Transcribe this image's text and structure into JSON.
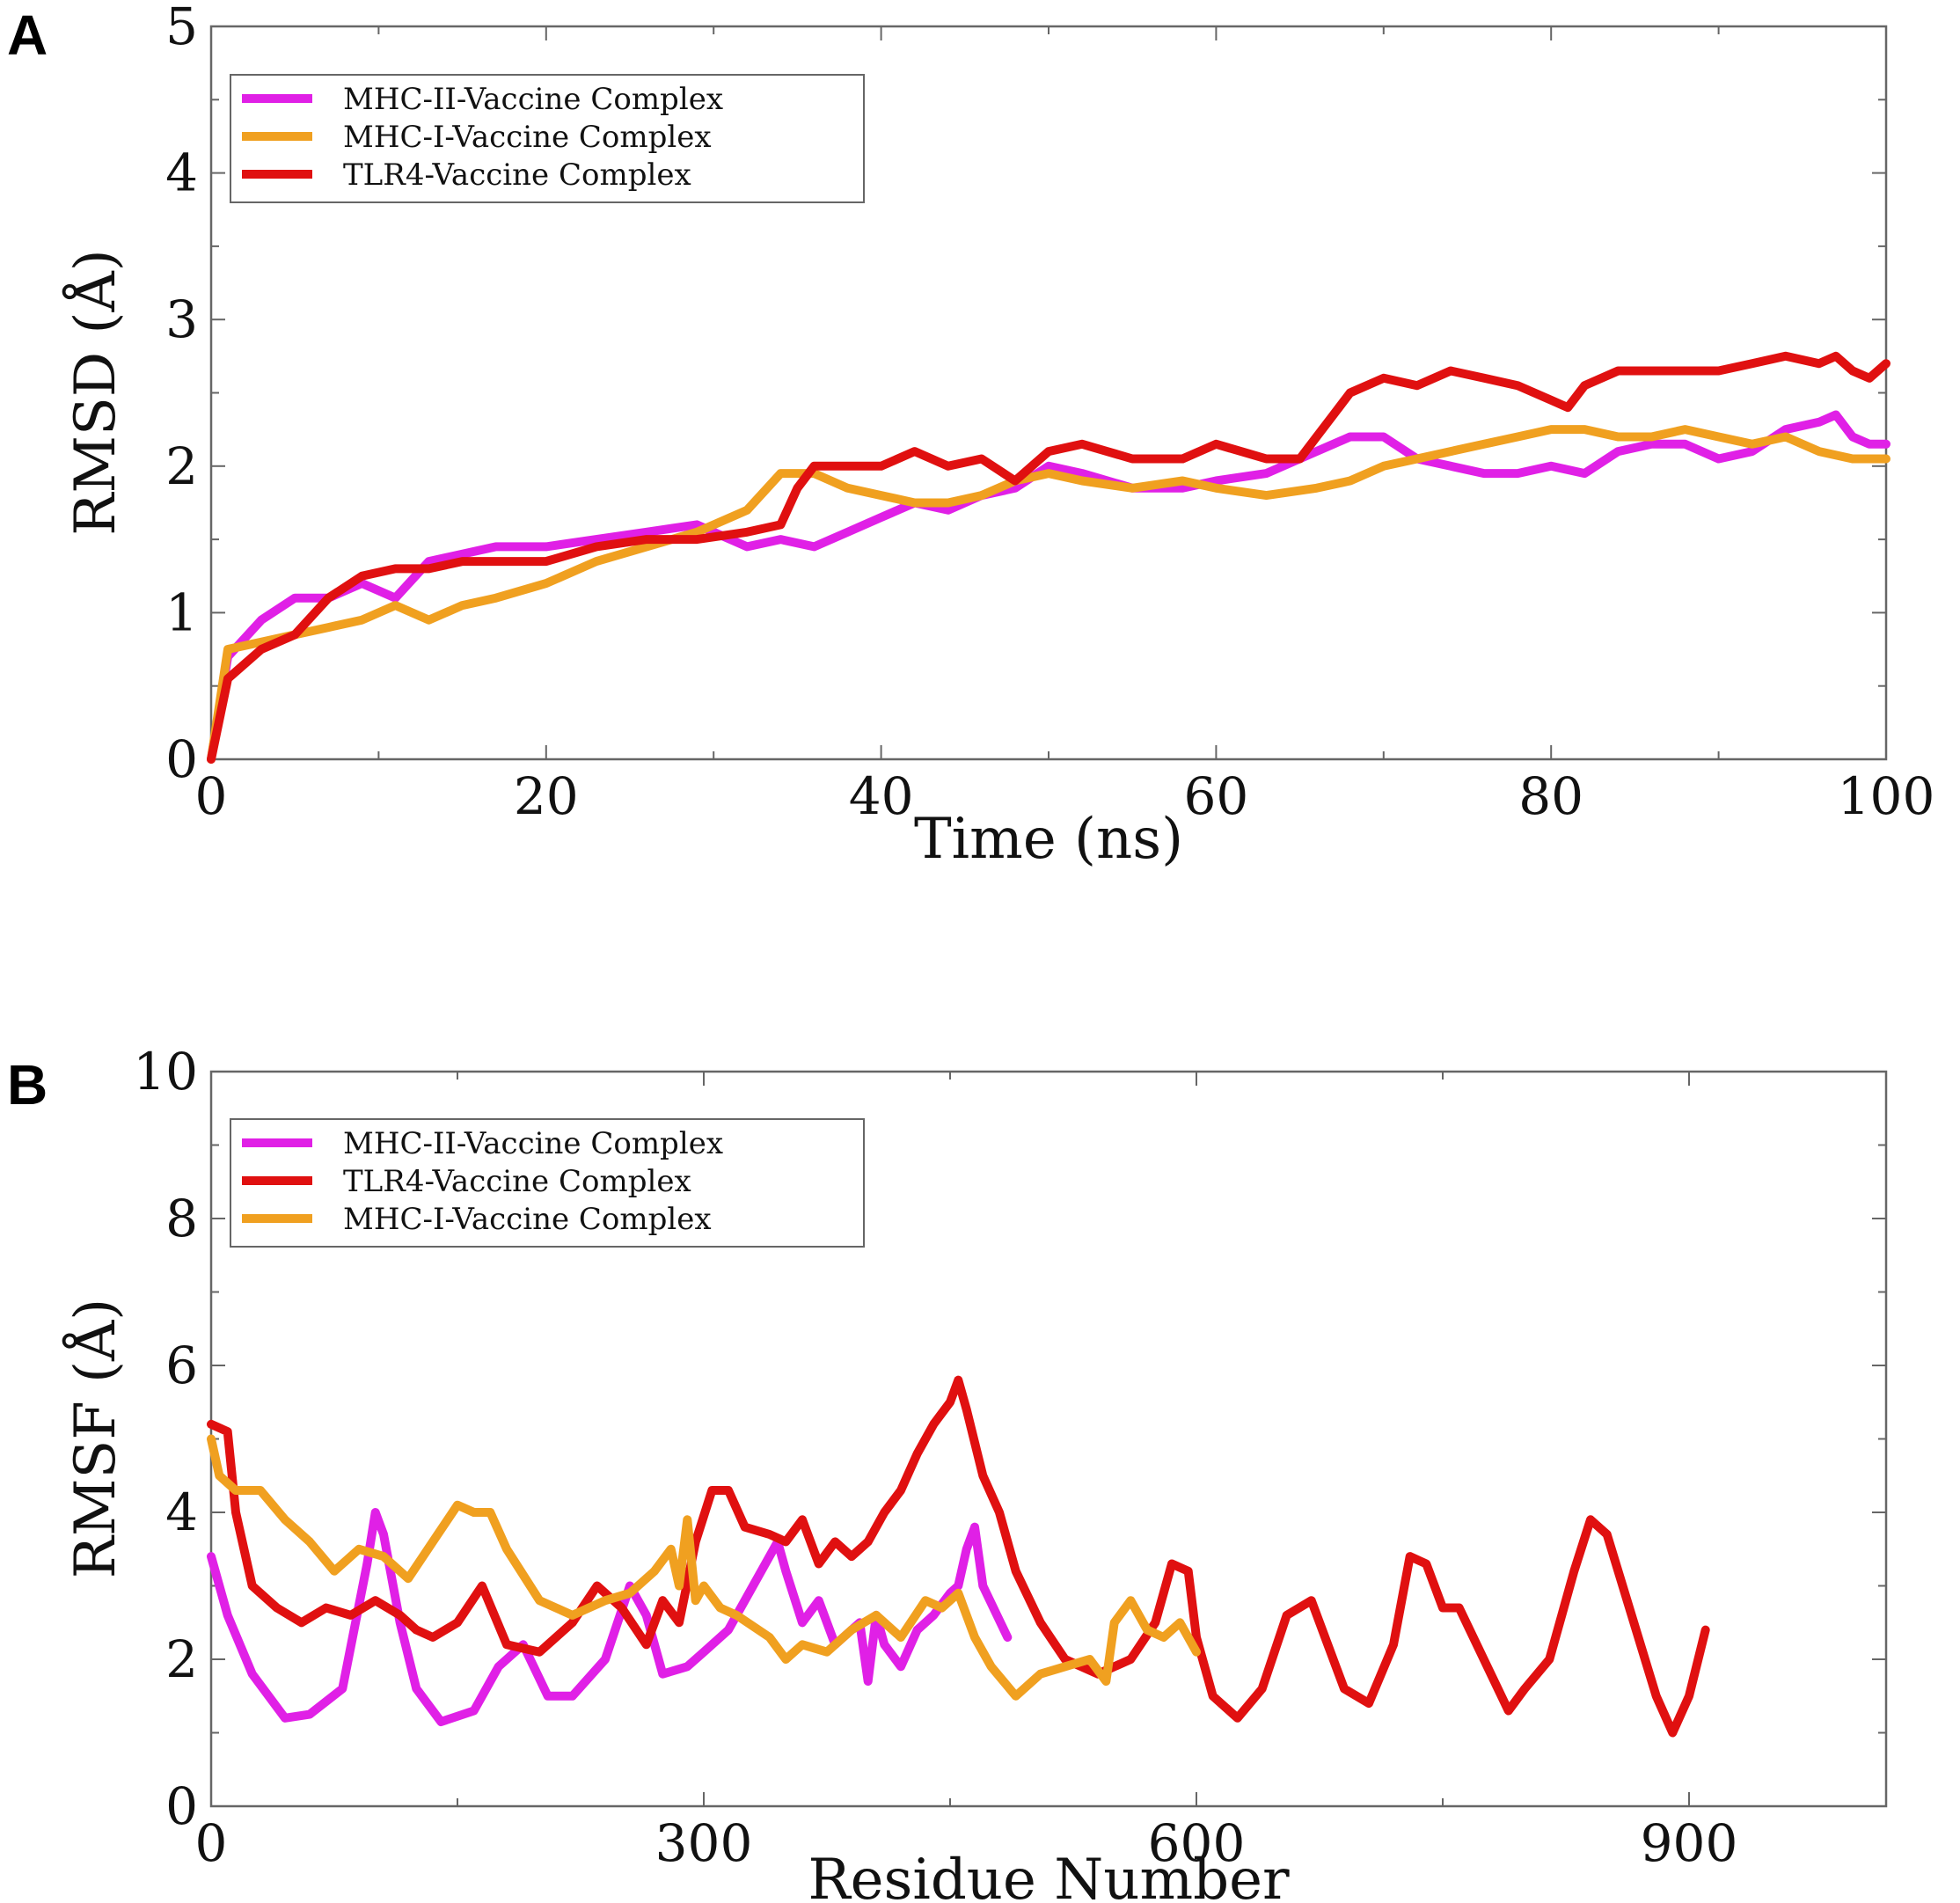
{
  "panels": {
    "A": {
      "label": "A"
    },
    "B": {
      "label": "B"
    }
  },
  "colors": {
    "mhc2": "#e020e6",
    "mhc1": "#f0a020",
    "tlr4": "#e01010"
  },
  "chart_data": [
    {
      "id": "A",
      "type": "line",
      "title": "",
      "xlabel": "Time (ns)",
      "ylabel": "RMSD (Å)",
      "xlim": [
        0,
        100
      ],
      "ylim": [
        0,
        5
      ],
      "xticks": [
        0,
        20,
        40,
        60,
        80,
        100
      ],
      "yticks": [
        0,
        1,
        2,
        3,
        4,
        5
      ],
      "legend_position": "top-left",
      "legend": [
        "MHC-II-Vaccine Complex",
        "MHC-I-Vaccine Complex",
        "TLR4-Vaccine Complex"
      ],
      "series": [
        {
          "name": "MHC-II-Vaccine Complex",
          "color": "#e020e6",
          "x": [
            0,
            1,
            3,
            5,
            7,
            9,
            11,
            13,
            15,
            17,
            20,
            23,
            26,
            29,
            32,
            34,
            36,
            38,
            40,
            42,
            44,
            46,
            48,
            50,
            52,
            55,
            58,
            60,
            63,
            66,
            68,
            70,
            72,
            74,
            76,
            78,
            80,
            82,
            84,
            86,
            88,
            90,
            92,
            94,
            96,
            97,
            98,
            99,
            100
          ],
          "y": [
            0,
            0.7,
            0.95,
            1.1,
            1.1,
            1.2,
            1.1,
            1.35,
            1.4,
            1.45,
            1.45,
            1.5,
            1.55,
            1.6,
            1.45,
            1.5,
            1.45,
            1.55,
            1.65,
            1.75,
            1.7,
            1.8,
            1.85,
            2.0,
            1.95,
            1.85,
            1.85,
            1.9,
            1.95,
            2.1,
            2.2,
            2.2,
            2.05,
            2.0,
            1.95,
            1.95,
            2.0,
            1.95,
            2.1,
            2.15,
            2.15,
            2.05,
            2.1,
            2.25,
            2.3,
            2.35,
            2.2,
            2.15,
            2.15
          ]
        },
        {
          "name": "MHC-I-Vaccine Complex",
          "color": "#f0a020",
          "x": [
            0,
            1,
            3,
            5,
            7,
            9,
            11,
            13,
            15,
            17,
            20,
            23,
            26,
            29,
            32,
            34,
            36,
            38,
            40,
            42,
            44,
            46,
            48,
            50,
            52,
            55,
            58,
            60,
            63,
            66,
            68,
            70,
            72,
            74,
            76,
            78,
            80,
            82,
            84,
            86,
            88,
            90,
            92,
            94,
            96,
            98,
            100
          ],
          "y": [
            0,
            0.75,
            0.8,
            0.85,
            0.9,
            0.95,
            1.05,
            0.95,
            1.05,
            1.1,
            1.2,
            1.35,
            1.45,
            1.55,
            1.7,
            1.95,
            1.95,
            1.85,
            1.8,
            1.75,
            1.75,
            1.8,
            1.9,
            1.95,
            1.9,
            1.85,
            1.9,
            1.85,
            1.8,
            1.85,
            1.9,
            2.0,
            2.05,
            2.1,
            2.15,
            2.2,
            2.25,
            2.25,
            2.2,
            2.2,
            2.25,
            2.2,
            2.15,
            2.2,
            2.1,
            2.05,
            2.05
          ]
        },
        {
          "name": "TLR4-Vaccine Complex",
          "color": "#e01010",
          "x": [
            0,
            1,
            3,
            5,
            7,
            9,
            11,
            13,
            15,
            17,
            20,
            23,
            26,
            29,
            32,
            34,
            35,
            36,
            38,
            40,
            42,
            44,
            46,
            48,
            50,
            52,
            55,
            58,
            60,
            63,
            65,
            66,
            67,
            68,
            70,
            72,
            74,
            76,
            78,
            80,
            81,
            82,
            84,
            86,
            88,
            90,
            92,
            94,
            96,
            97,
            98,
            99,
            100
          ],
          "y": [
            0,
            0.55,
            0.75,
            0.85,
            1.1,
            1.25,
            1.3,
            1.3,
            1.35,
            1.35,
            1.35,
            1.45,
            1.5,
            1.5,
            1.55,
            1.6,
            1.85,
            2.0,
            2.0,
            2.0,
            2.1,
            2.0,
            2.05,
            1.9,
            2.1,
            2.15,
            2.05,
            2.05,
            2.15,
            2.05,
            2.05,
            2.2,
            2.35,
            2.5,
            2.6,
            2.55,
            2.65,
            2.6,
            2.55,
            2.45,
            2.4,
            2.55,
            2.65,
            2.65,
            2.65,
            2.65,
            2.7,
            2.75,
            2.7,
            2.75,
            2.65,
            2.6,
            2.7
          ]
        }
      ]
    },
    {
      "id": "B",
      "type": "line",
      "title": "",
      "xlabel": "Residue Number",
      "ylabel": "RMSF (Å)",
      "xlim": [
        0,
        1020
      ],
      "ylim": [
        0,
        10
      ],
      "xticks": [
        0,
        300,
        600,
        900
      ],
      "yticks": [
        0,
        2,
        4,
        6,
        8,
        10
      ],
      "legend_position": "top-left",
      "legend": [
        "MHC-II-Vaccine Complex",
        "TLR4-Vaccine Complex",
        "MHC-I-Vaccine Complex"
      ],
      "series": [
        {
          "name": "MHC-II-Vaccine Complex",
          "color": "#e020e6",
          "x": [
            0,
            10,
            25,
            45,
            60,
            80,
            95,
            100,
            105,
            115,
            125,
            140,
            160,
            175,
            190,
            205,
            220,
            240,
            255,
            265,
            275,
            290,
            300,
            315,
            330,
            345,
            350,
            360,
            370,
            380,
            395,
            400,
            405,
            410,
            420,
            430,
            440,
            450,
            455,
            460,
            465,
            470,
            485
          ],
          "y": [
            3.4,
            2.6,
            1.8,
            1.2,
            1.25,
            1.6,
            3.3,
            4.0,
            3.7,
            2.5,
            1.6,
            1.15,
            1.3,
            1.9,
            2.2,
            1.5,
            1.5,
            2.0,
            3.0,
            2.6,
            1.8,
            1.9,
            2.1,
            2.4,
            3.0,
            3.6,
            3.2,
            2.5,
            2.8,
            2.2,
            2.5,
            1.7,
            2.6,
            2.2,
            1.9,
            2.4,
            2.6,
            2.9,
            3.0,
            3.5,
            3.8,
            3.0,
            2.3
          ]
        },
        {
          "name": "TLR4-Vaccine Complex",
          "color": "#e01010",
          "x": [
            0,
            10,
            15,
            25,
            40,
            55,
            70,
            85,
            100,
            115,
            125,
            135,
            150,
            165,
            180,
            200,
            220,
            235,
            250,
            265,
            275,
            285,
            295,
            305,
            315,
            325,
            340,
            350,
            360,
            370,
            380,
            390,
            400,
            410,
            420,
            430,
            440,
            450,
            455,
            460,
            470,
            480,
            490,
            505,
            520,
            540,
            560,
            575,
            585,
            595,
            600,
            610,
            625,
            640,
            655,
            670,
            680,
            690,
            705,
            720,
            730,
            740,
            750,
            760,
            775,
            790,
            800,
            815,
            830,
            840,
            850,
            865,
            880,
            890,
            900,
            910
          ],
          "y": [
            5.2,
            5.1,
            4.0,
            3.0,
            2.7,
            2.5,
            2.7,
            2.6,
            2.8,
            2.6,
            2.4,
            2.3,
            2.5,
            3.0,
            2.2,
            2.1,
            2.5,
            3.0,
            2.7,
            2.2,
            2.8,
            2.5,
            3.6,
            4.3,
            4.3,
            3.8,
            3.7,
            3.6,
            3.9,
            3.3,
            3.6,
            3.4,
            3.6,
            4.0,
            4.3,
            4.8,
            5.2,
            5.5,
            5.8,
            5.4,
            4.5,
            4.0,
            3.2,
            2.5,
            2.0,
            1.8,
            2.0,
            2.5,
            3.3,
            3.2,
            2.3,
            1.5,
            1.2,
            1.6,
            2.6,
            2.8,
            2.2,
            1.6,
            1.4,
            2.2,
            3.4,
            3.3,
            2.7,
            2.7,
            2.0,
            1.3,
            1.6,
            2.0,
            3.2,
            3.9,
            3.7,
            2.6,
            1.5,
            1.0,
            1.5,
            2.4
          ]
        },
        {
          "name": "MHC-I-Vaccine Complex",
          "color": "#f0a020",
          "x": [
            0,
            5,
            15,
            30,
            45,
            60,
            75,
            90,
            105,
            120,
            135,
            150,
            160,
            170,
            180,
            200,
            220,
            240,
            255,
            270,
            280,
            285,
            290,
            295,
            300,
            310,
            320,
            340,
            350,
            360,
            375,
            390,
            405,
            420,
            435,
            445,
            455,
            465,
            475,
            490,
            505,
            520,
            535,
            545,
            550,
            560,
            570,
            580,
            590,
            600
          ],
          "y": [
            5.0,
            4.5,
            4.3,
            4.3,
            3.9,
            3.6,
            3.2,
            3.5,
            3.4,
            3.1,
            3.6,
            4.1,
            4.0,
            4.0,
            3.5,
            2.8,
            2.6,
            2.8,
            2.9,
            3.2,
            3.5,
            3.0,
            3.9,
            2.8,
            3.0,
            2.7,
            2.6,
            2.3,
            2.0,
            2.2,
            2.1,
            2.4,
            2.6,
            2.3,
            2.8,
            2.7,
            2.9,
            2.3,
            1.9,
            1.5,
            1.8,
            1.9,
            2.0,
            1.7,
            2.5,
            2.8,
            2.4,
            2.3,
            2.5,
            2.1
          ]
        }
      ]
    }
  ]
}
